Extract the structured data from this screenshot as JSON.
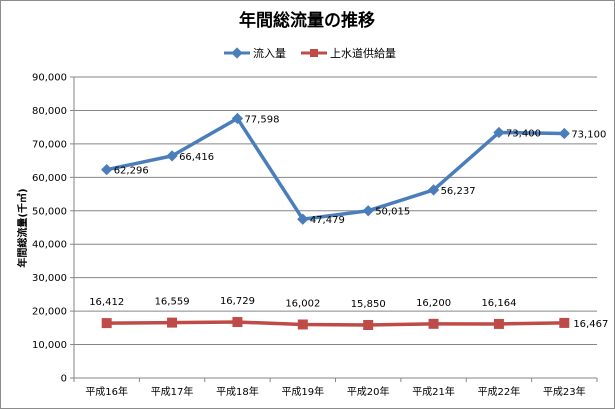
{
  "chart_data": {
    "type": "line",
    "title": "年間総流量の推移",
    "ylabel": "年間総流量(千㎥)",
    "xlabel": "",
    "categories": [
      "平成16年",
      "平成17年",
      "平成18年",
      "平成19年",
      "平成20年",
      "平成21年",
      "平成22年",
      "平成23年"
    ],
    "ylim": [
      0,
      90000
    ],
    "yticks": [
      0,
      10000,
      20000,
      30000,
      40000,
      50000,
      60000,
      70000,
      80000,
      90000
    ],
    "ytick_labels": [
      "0",
      "10,000",
      "20,000",
      "30,000",
      "40,000",
      "50,000",
      "60,000",
      "70,000",
      "80,000",
      "90,000"
    ],
    "grid": true,
    "legend_position": "top",
    "series": [
      {
        "name": "流入量",
        "color": "#4a7ebb",
        "marker": "diamond",
        "values": [
          62296,
          66416,
          77598,
          47479,
          50015,
          56237,
          73400,
          73100
        ],
        "labels": [
          "62,296",
          "66,416",
          "77,598",
          "47,479",
          "50,015",
          "56,237",
          "73,400",
          "73,100"
        ]
      },
      {
        "name": "上水道供給量",
        "color": "#be4b48",
        "marker": "square",
        "values": [
          16412,
          16559,
          16729,
          16002,
          15850,
          16200,
          16164,
          16467
        ],
        "labels": [
          "16,412",
          "16,559",
          "16,729",
          "16,002",
          "15,850",
          "16,200",
          "16,164",
          "16,467"
        ]
      }
    ]
  }
}
